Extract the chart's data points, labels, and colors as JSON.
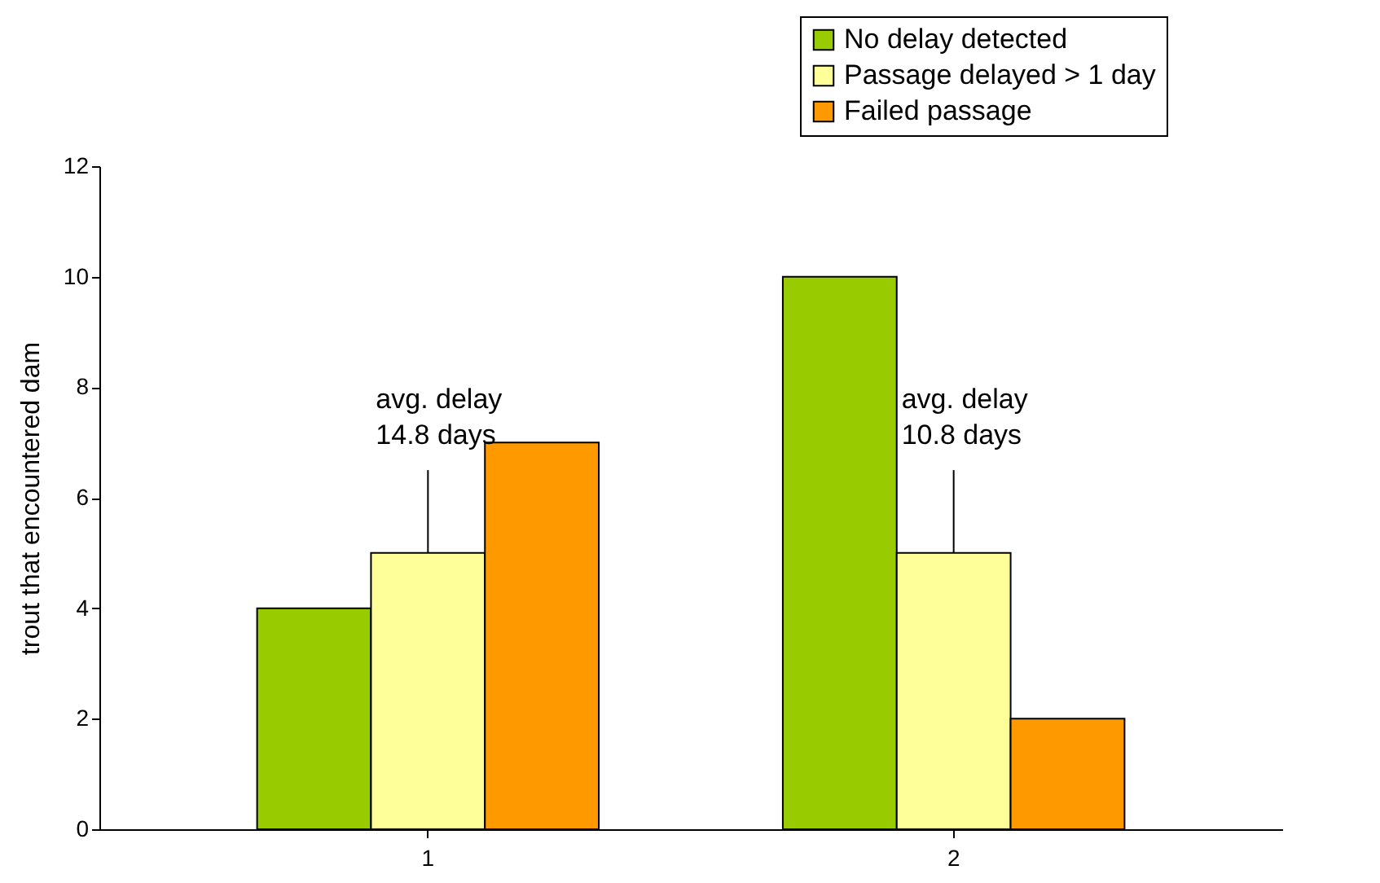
{
  "chart_data": {
    "type": "bar",
    "ylabel": "trout that encountered dam",
    "categories": [
      "1",
      "2"
    ],
    "series": [
      {
        "name": "No delay detected",
        "color": "#99cc00",
        "values": [
          4,
          10
        ]
      },
      {
        "name": "Passage delayed > 1 day",
        "color": "#ffff99",
        "values": [
          5,
          5
        ]
      },
      {
        "name": "Failed passage",
        "color": "#ff9900",
        "values": [
          7,
          2
        ]
      }
    ],
    "ylim": [
      0,
      12
    ],
    "yticks": [
      0,
      2,
      4,
      6,
      8,
      10,
      12
    ],
    "grid": false,
    "legend": "top right",
    "annotations": [
      {
        "text": "avg. delay\n14.8 days",
        "x": "1",
        "y": 5
      },
      {
        "text": "avg. delay\n10.8 days",
        "x": "2",
        "y": 5
      }
    ]
  }
}
